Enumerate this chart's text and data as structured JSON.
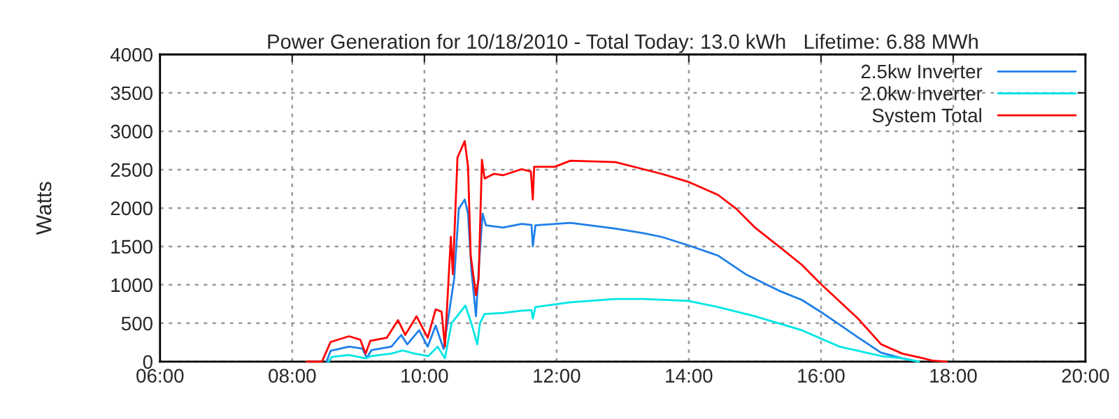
{
  "chart_data": {
    "type": "line",
    "title": "Power Generation for 10/18/2010 - Total Today: 13.0 kWh   Lifetime: 6.88 MWh",
    "ylabel": "Watts",
    "xlim": [
      6,
      20
    ],
    "ylim": [
      0,
      4000
    ],
    "xticks": [
      {
        "value": 6,
        "label": "06:00"
      },
      {
        "value": 8,
        "label": "08:00"
      },
      {
        "value": 10,
        "label": "10:00"
      },
      {
        "value": 12,
        "label": "12:00"
      },
      {
        "value": 14,
        "label": "14:00"
      },
      {
        "value": 16,
        "label": "16:00"
      },
      {
        "value": 18,
        "label": "18:00"
      },
      {
        "value": 20,
        "label": "20:00"
      }
    ],
    "yticks": [
      0,
      500,
      1000,
      1500,
      2000,
      2500,
      3000,
      3500,
      4000
    ],
    "grid": true,
    "legend": "top right",
    "line_style": "solid",
    "series": [
      {
        "name": "2.5kw Inverter",
        "color": "#1e7fe8",
        "x": [
          8.52,
          8.58,
          8.86,
          9.06,
          9.13,
          9.2,
          9.5,
          9.65,
          9.74,
          9.92,
          10.05,
          10.17,
          10.29,
          10.45,
          10.52,
          10.61,
          10.66,
          10.71,
          10.78,
          10.83,
          10.88,
          10.93,
          11.19,
          11.47,
          11.62,
          11.64,
          11.68,
          12.21,
          12.89,
          13.31,
          13.59,
          13.99,
          14.44,
          14.86,
          15.36,
          15.71,
          15.99,
          16.28,
          16.56,
          16.91,
          17.23,
          17.48
        ],
        "values": [
          0,
          140,
          195,
          170,
          49,
          150,
          195,
          347,
          225,
          408,
          195,
          469,
          164,
          1077,
          1990,
          2110,
          1928,
          1199,
          590,
          1320,
          1928,
          1776,
          1746,
          1794,
          1780,
          1503,
          1776,
          1806,
          1733,
          1672,
          1624,
          1515,
          1381,
          1138,
          925,
          803,
          651,
          481,
          316,
          116,
          43,
          0
        ]
      },
      {
        "name": "2.0kw Inverter",
        "color": "#00e5e5",
        "x": [
          8.55,
          8.6,
          8.86,
          9.11,
          9.2,
          9.5,
          9.67,
          9.85,
          10.06,
          10.2,
          10.31,
          10.41,
          10.62,
          10.71,
          10.8,
          10.84,
          10.91,
          11.19,
          11.47,
          11.62,
          11.64,
          11.68,
          12.21,
          12.89,
          13.31,
          13.99,
          14.44,
          15.0,
          15.71,
          16.28,
          16.91,
          17.23,
          17.48
        ],
        "values": [
          0,
          61,
          85,
          43,
          73,
          104,
          146,
          104,
          73,
          195,
          43,
          499,
          730,
          499,
          225,
          499,
          620,
          633,
          663,
          670,
          560,
          711,
          773,
          815,
          815,
          791,
          711,
          590,
          408,
          195,
          73,
          43,
          0
        ]
      },
      {
        "name": "System Total",
        "color": "#ff0000",
        "x": [
          8.22,
          8.45,
          8.58,
          8.86,
          9.03,
          9.11,
          9.18,
          9.43,
          9.6,
          9.71,
          9.88,
          10.05,
          10.17,
          10.26,
          10.31,
          10.4,
          10.43,
          10.5,
          10.61,
          10.66,
          10.7,
          10.78,
          10.82,
          10.87,
          10.91,
          11.05,
          11.19,
          11.47,
          11.61,
          11.64,
          11.66,
          11.97,
          12.21,
          12.89,
          13.31,
          13.59,
          13.99,
          14.44,
          14.72,
          15.0,
          15.36,
          15.71,
          15.99,
          16.28,
          16.56,
          16.91,
          17.23,
          17.55,
          17.69,
          17.9
        ],
        "values": [
          0,
          0,
          255,
          330,
          285,
          104,
          270,
          310,
          540,
          347,
          590,
          310,
          680,
          650,
          195,
          1624,
          1138,
          2658,
          2871,
          2537,
          1381,
          864,
          1077,
          2628,
          2384,
          2445,
          2427,
          2506,
          2476,
          2111,
          2537,
          2537,
          2616,
          2598,
          2506,
          2445,
          2342,
          2172,
          1989,
          1746,
          1503,
          1260,
          1016,
          785,
          560,
          225,
          104,
          43,
          12,
          0
        ]
      }
    ]
  }
}
